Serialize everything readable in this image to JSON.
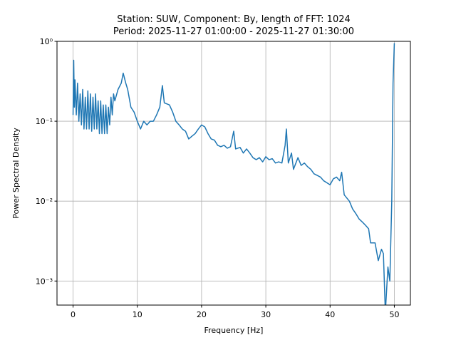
{
  "chart_data": {
    "type": "line",
    "title": "Station: SUW, Component: By, length of FFT: 1024",
    "subtitle": "Period: 2025-11-27 01:00:00 - 2025-11-27 01:30:00",
    "xlabel": "Frequency [Hz]",
    "ylabel": "Power Spectral Density",
    "xlim": [
      -2.5,
      52.5
    ],
    "xticks": [
      0,
      10,
      20,
      30,
      40,
      50
    ],
    "ylim": [
      0.0005,
      1
    ],
    "yticks": [
      {
        "value": 0.001,
        "label": "10⁻³"
      },
      {
        "value": 0.01,
        "label": "10⁻²"
      },
      {
        "value": 0.1,
        "label": "10⁻¹"
      },
      {
        "value": 1,
        "label": "10⁰"
      }
    ],
    "log_y": true,
    "grid": true,
    "series": [
      {
        "color": "#1f77b4",
        "x": [
          0,
          0.1,
          0.2,
          0.3,
          0.5,
          0.7,
          0.9,
          1.1,
          1.3,
          1.5,
          1.7,
          1.9,
          2.1,
          2.3,
          2.5,
          2.7,
          2.9,
          3.1,
          3.3,
          3.5,
          3.7,
          3.9,
          4.1,
          4.3,
          4.5,
          4.7,
          4.9,
          5.1,
          5.3,
          5.5,
          5.7,
          5.9,
          6.1,
          6.3,
          6.5,
          7,
          7.5,
          7.8,
          8.2,
          8.5,
          9,
          9.5,
          10,
          10.5,
          11,
          11.5,
          12,
          12.5,
          13,
          13.5,
          13.9,
          14.2,
          15,
          15.5,
          16,
          16.5,
          17,
          17.5,
          18,
          18.5,
          19,
          19.5,
          20,
          20.5,
          21,
          21.5,
          22,
          22.5,
          23,
          23.5,
          24,
          24.5,
          25,
          25.3,
          26,
          26.5,
          27,
          27.5,
          28,
          28.5,
          29,
          29.5,
          30,
          30.5,
          31,
          31.5,
          32,
          32.5,
          33,
          33.2,
          33.5,
          34,
          34.3,
          35,
          35.5,
          36,
          36.5,
          37,
          37.5,
          38,
          38.5,
          39,
          39.5,
          40,
          40.5,
          41,
          41.5,
          41.8,
          42.2,
          43,
          43.5,
          44,
          44.5,
          45,
          45.5,
          46,
          46.3,
          47,
          47.5,
          48,
          48.3,
          48.6,
          49,
          49.3,
          49.6,
          49.8,
          50
        ],
        "values": [
          0.12,
          0.58,
          0.15,
          0.33,
          0.12,
          0.3,
          0.1,
          0.22,
          0.09,
          0.25,
          0.08,
          0.2,
          0.08,
          0.24,
          0.08,
          0.22,
          0.075,
          0.2,
          0.08,
          0.22,
          0.08,
          0.18,
          0.07,
          0.18,
          0.07,
          0.16,
          0.07,
          0.16,
          0.07,
          0.15,
          0.09,
          0.2,
          0.12,
          0.22,
          0.18,
          0.25,
          0.3,
          0.4,
          0.3,
          0.25,
          0.15,
          0.13,
          0.1,
          0.08,
          0.1,
          0.09,
          0.1,
          0.1,
          0.12,
          0.15,
          0.28,
          0.17,
          0.16,
          0.13,
          0.1,
          0.09,
          0.08,
          0.075,
          0.06,
          0.065,
          0.07,
          0.08,
          0.09,
          0.085,
          0.07,
          0.06,
          0.058,
          0.05,
          0.048,
          0.05,
          0.046,
          0.048,
          0.075,
          0.045,
          0.047,
          0.04,
          0.045,
          0.04,
          0.035,
          0.033,
          0.035,
          0.031,
          0.036,
          0.033,
          0.034,
          0.03,
          0.031,
          0.03,
          0.05,
          0.08,
          0.03,
          0.04,
          0.025,
          0.035,
          0.028,
          0.03,
          0.027,
          0.025,
          0.022,
          0.021,
          0.02,
          0.018,
          0.017,
          0.016,
          0.019,
          0.02,
          0.018,
          0.023,
          0.012,
          0.01,
          0.008,
          0.007,
          0.006,
          0.0055,
          0.005,
          0.0045,
          0.003,
          0.003,
          0.0018,
          0.0025,
          0.0022,
          0.0004,
          0.0015,
          0.001,
          0.01,
          0.3,
          0.95
        ]
      }
    ]
  }
}
